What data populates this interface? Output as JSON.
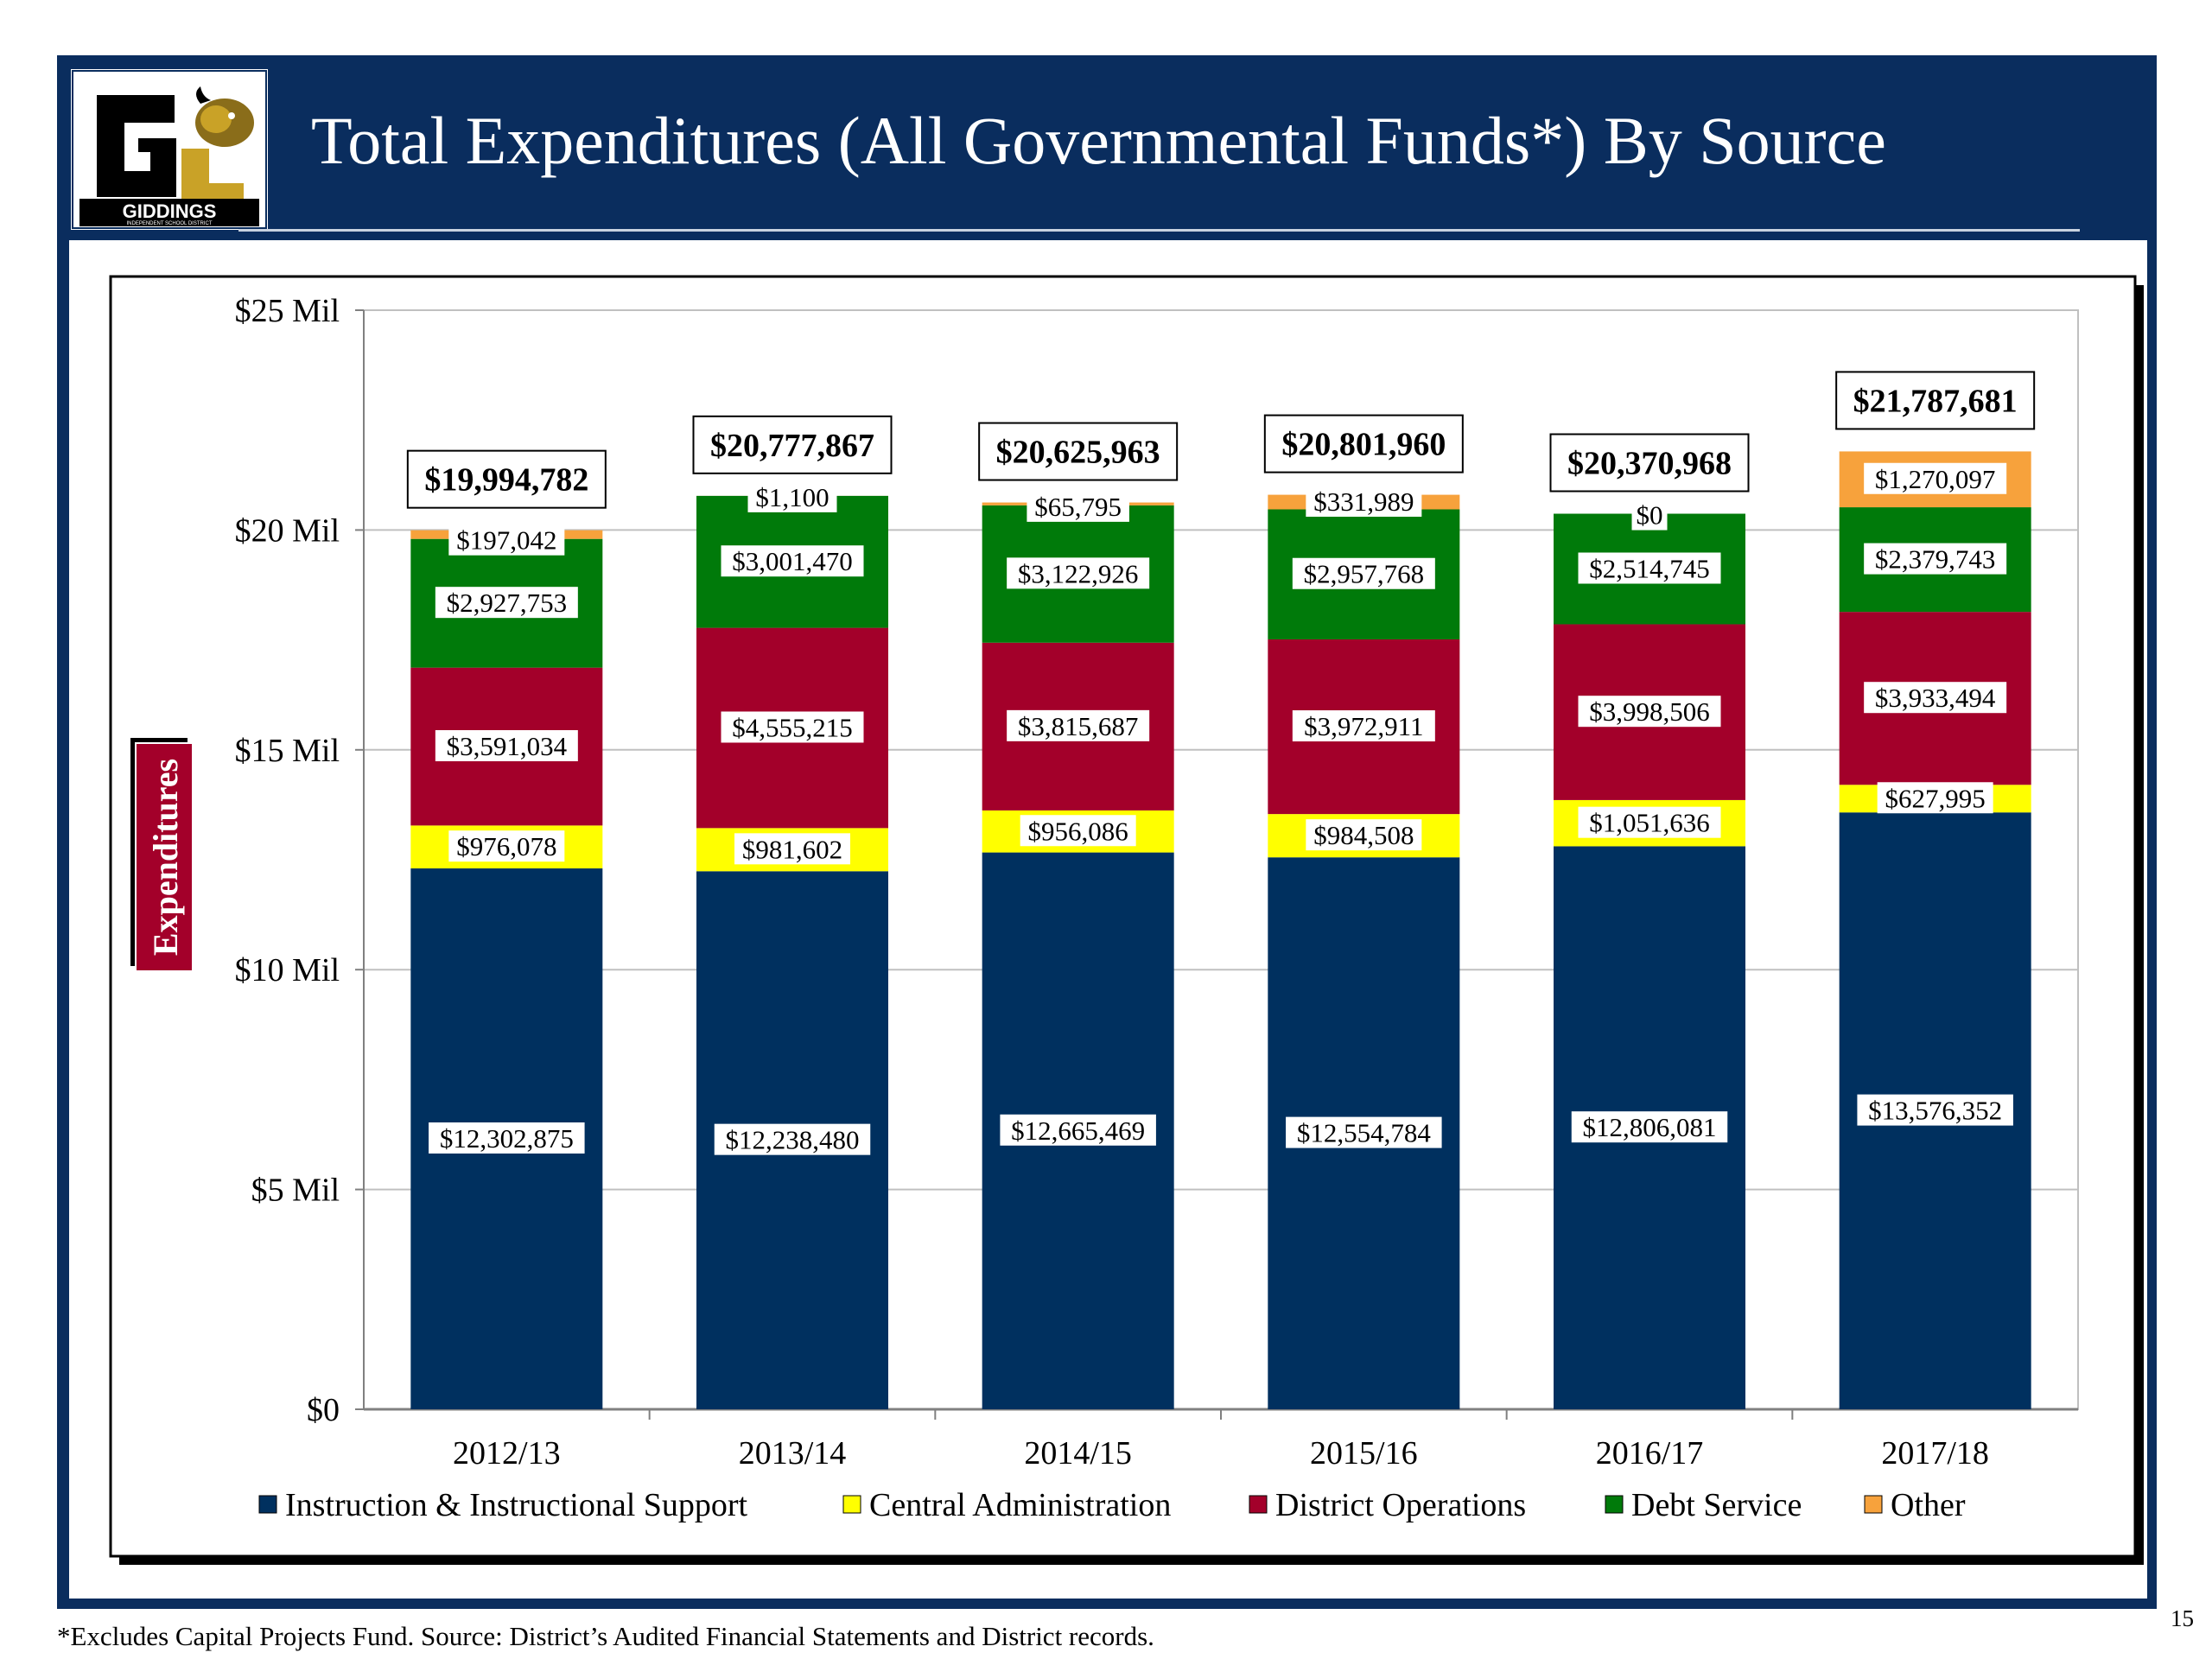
{
  "slide": {
    "title": "Total Expenditures (All Governmental Funds*) By Source",
    "logo_text": "GIDDINGS",
    "logo_subtext": "INDEPENDENT SCHOOL DISTRICT",
    "footnote": "*Excludes Capital Projects Fund. Source: District’s Audited Financial Statements and District records.",
    "page_number": "15"
  },
  "colors": {
    "frame": "#0a2d5e",
    "instruction": "#00305f",
    "central_admin": "#ffff00",
    "district_operations": "#a3002a",
    "debt_service": "#007a0a",
    "other": "#f7a23c",
    "ylabel_box": "#a3002a"
  },
  "chart_data": {
    "type": "bar",
    "stacked": true,
    "categories": [
      "2012/13",
      "2013/14",
      "2014/15",
      "2015/16",
      "2016/17",
      "2017/18"
    ],
    "ylabel": "Expenditures",
    "ylim": [
      0,
      25000000
    ],
    "y_ticks": [
      {
        "value": 0,
        "label": "$0"
      },
      {
        "value": 5000000,
        "label": "$5 Mil"
      },
      {
        "value": 10000000,
        "label": "$10 Mil"
      },
      {
        "value": 15000000,
        "label": "$15 Mil"
      },
      {
        "value": 20000000,
        "label": "$20 Mil"
      },
      {
        "value": 25000000,
        "label": "$25 Mil"
      }
    ],
    "grid": true,
    "legend_position": "bottom",
    "series": [
      {
        "name": "Instruction & Instructional Support",
        "color": "#00305f",
        "values": [
          12302875,
          12238480,
          12665469,
          12554784,
          12806081,
          13576352
        ],
        "labels": [
          "$12,302,875",
          "$12,238,480",
          "$12,665,469",
          "$12,554,784",
          "$12,806,081",
          "$13,576,352"
        ]
      },
      {
        "name": "Central Administration",
        "color": "#ffff00",
        "values": [
          976078,
          981602,
          956086,
          984508,
          1051636,
          627995
        ],
        "labels": [
          "$976,078",
          "$981,602",
          "$956,086",
          "$984,508",
          "$1,051,636",
          "$627,995"
        ]
      },
      {
        "name": "District Operations",
        "color": "#a3002a",
        "values": [
          3591034,
          4555215,
          3815687,
          3972911,
          3998506,
          3933494
        ],
        "labels": [
          "$3,591,034",
          "$4,555,215",
          "$3,815,687",
          "$3,972,911",
          "$3,998,506",
          "$3,933,494"
        ]
      },
      {
        "name": "Debt Service",
        "color": "#007a0a",
        "values": [
          2927753,
          3001470,
          3122926,
          2957768,
          2514745,
          2379743
        ],
        "labels": [
          "$2,927,753",
          "$3,001,470",
          "$3,122,926",
          "$2,957,768",
          "$2,514,745",
          "$2,379,743"
        ]
      },
      {
        "name": "Other",
        "color": "#f7a23c",
        "values": [
          197042,
          1100,
          65795,
          331989,
          0,
          1270097
        ],
        "labels": [
          "$197,042",
          "$1,100",
          "$65,795",
          "$331,989",
          "$0",
          "$1,270,097"
        ]
      }
    ],
    "totals": [
      19994782,
      20777867,
      20625963,
      20801960,
      20370968,
      21787681
    ],
    "total_labels": [
      "$19,994,782",
      "$20,777,867",
      "$20,625,963",
      "$20,801,960",
      "$20,370,968",
      "$21,787,681"
    ]
  }
}
